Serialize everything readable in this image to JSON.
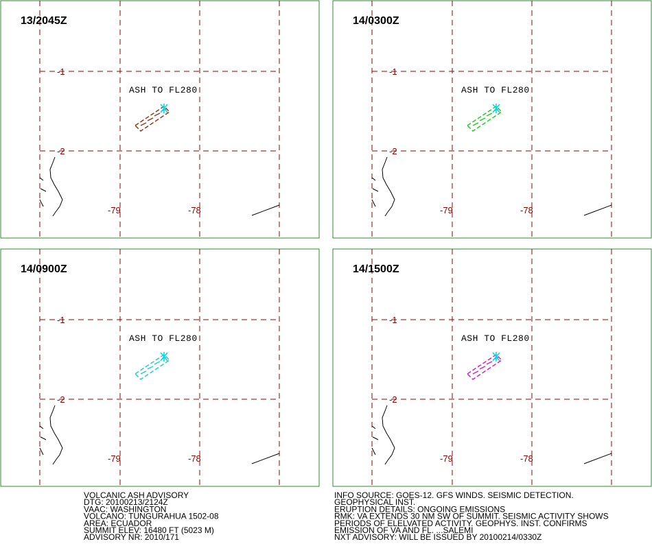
{
  "panels": [
    {
      "time": "13/2045Z",
      "annotation": "ASH TO FL280",
      "color": "#8b3a1a"
    },
    {
      "time": "14/0300Z",
      "annotation": "ASH TO FL280",
      "color": "#22cc22"
    },
    {
      "time": "14/0900Z",
      "annotation": "ASH TO FL280",
      "color": "#22cccc"
    },
    {
      "time": "14/1500Z",
      "annotation": "ASH TO FL280",
      "color": "#cc22cc"
    }
  ],
  "grid_labels": {
    "lat": [
      "-1",
      "-2"
    ],
    "lon": [
      "-79",
      "-78"
    ]
  },
  "advisory_left": [
    "VOLCANIC ASH ADVISORY",
    "DTG: 20100213/2124Z",
    "VAAC: WASHINGTON",
    "VOLCANO: TUNGURAHUA 1502-08",
    "AREA: ECUADOR",
    "SUMMIT ELEV: 16480 FT (5023 M)",
    "ADVISORY NR: 2010/171"
  ],
  "advisory_right": [
    "INFO SOURCE: GOES-12. GFS WINDS. SEISMIC DETECTION.",
    "GEOPHYSICAL INST.",
    "ERUPTION DETAILS: ONGOING EMISSIONS",
    "RMK: VA EXTENDS 30 NM SW OF SUMMIT. SEISMIC ACTIVITY SHOWS",
    "PERIODS OF ELELVATED ACTIVITY. GEOPHYS. INST. CONFIRMS",
    "EMISSION OF VA AND FL. ...SALEMI",
    "NXT ADVISORY: WILL BE ISSUED BY 20100214/0330Z"
  ]
}
